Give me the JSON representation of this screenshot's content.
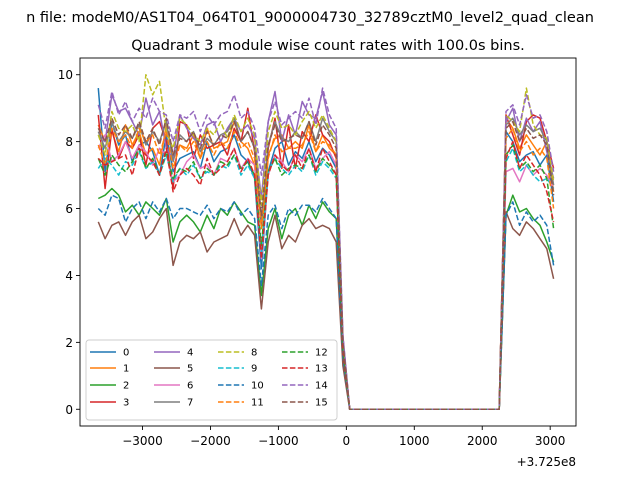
{
  "figure": {
    "suptitle": "n file: modeM0/AS1T04_064T01_9000004730_32789cztM0_level2_quad_clean",
    "title": "Quadrant 3 module wise count rates with 100.0s bins.",
    "offset_text": "+3.725e8"
  },
  "chart_data": {
    "type": "line",
    "title": "Quadrant 3 module wise count rates with 100.0s bins.",
    "xlabel": "",
    "ylabel": "",
    "x_offset": 372500000,
    "xlim": [
      -3920,
      3380
    ],
    "ylim": [
      -0.5,
      10.5
    ],
    "xticks": [
      -3000,
      -2000,
      -1000,
      0,
      1000,
      2000,
      3000
    ],
    "xtick_labels": [
      "−3000",
      "−2000",
      "−1000",
      "0",
      "1000",
      "2000",
      "3000"
    ],
    "yticks": [
      0,
      2,
      4,
      6,
      8,
      10
    ],
    "ytick_labels": [
      "0",
      "2",
      "4",
      "6",
      "8",
      "10"
    ],
    "grid": false,
    "legend": {
      "placement": "lower-left",
      "columns": 4
    },
    "x": [
      -3650,
      -3550,
      -3450,
      -3350,
      -3250,
      -3150,
      -3050,
      -2950,
      -2850,
      -2750,
      -2650,
      -2550,
      -2450,
      -2350,
      -2250,
      -2150,
      -2050,
      -1950,
      -1850,
      -1750,
      -1650,
      -1550,
      -1450,
      -1350,
      -1250,
      -1150,
      -1050,
      -950,
      -850,
      -750,
      -650,
      -550,
      -450,
      -350,
      -250,
      -150,
      -50,
      50,
      150,
      250,
      350,
      450,
      550,
      650,
      750,
      850,
      950,
      1050,
      1150,
      1250,
      1350,
      1450,
      1550,
      1650,
      1750,
      1850,
      1950,
      2050,
      2150,
      2250,
      2350,
      2450,
      2550,
      2650,
      2750,
      2850,
      2950,
      3050
    ],
    "series": [
      {
        "name": "0",
        "color": "#1f77b4",
        "dash": "solid",
        "values": [
          9.6,
          7.1,
          8.6,
          7.9,
          8.2,
          7.4,
          7.9,
          8.0,
          7.7,
          7.0,
          8.2,
          7.1,
          7.5,
          7.6,
          7.7,
          7.2,
          8.0,
          7.4,
          7.7,
          7.8,
          8.2,
          7.6,
          7.4,
          6.9,
          4.2,
          7.1,
          7.8,
          8.0,
          7.3,
          7.7,
          7.5,
          8.0,
          7.4,
          7.8,
          7.6,
          7.2,
          1.9,
          0,
          0,
          0,
          0,
          0,
          0,
          0,
          0,
          0,
          0,
          0,
          0,
          0,
          0,
          0,
          0,
          0,
          0,
          0,
          0,
          0,
          0,
          0,
          8.3,
          8.0,
          7.4,
          7.6,
          7.7,
          7.3,
          7.6,
          6.2
        ]
      },
      {
        "name": "1",
        "color": "#ff7f0e",
        "dash": "solid",
        "values": [
          8.5,
          8.0,
          8.3,
          7.7,
          8.5,
          7.9,
          8.3,
          7.6,
          7.8,
          7.3,
          8.5,
          7.6,
          7.9,
          7.8,
          8.2,
          7.5,
          8.4,
          7.8,
          7.9,
          8.0,
          8.6,
          8.0,
          7.8,
          7.3,
          4.6,
          7.6,
          8.1,
          8.2,
          7.8,
          8.0,
          7.8,
          8.5,
          7.7,
          8.2,
          7.8,
          7.6,
          2.0,
          0,
          0,
          0,
          0,
          0,
          0,
          0,
          0,
          0,
          0,
          0,
          0,
          0,
          0,
          0,
          0,
          0,
          0,
          0,
          0,
          0,
          0,
          0,
          8.7,
          8.4,
          7.8,
          8.2,
          7.9,
          7.6,
          8.0,
          6.5
        ]
      },
      {
        "name": "2",
        "color": "#2ca02c",
        "dash": "solid",
        "values": [
          6.3,
          6.4,
          6.6,
          6.4,
          5.9,
          6.1,
          5.8,
          6.2,
          6.0,
          5.8,
          6.3,
          5.0,
          5.6,
          5.8,
          5.6,
          5.3,
          5.8,
          5.4,
          6.0,
          5.8,
          6.2,
          5.9,
          5.6,
          5.5,
          3.4,
          5.4,
          6.0,
          5.1,
          5.8,
          6.0,
          5.5,
          6.1,
          5.7,
          6.2,
          5.9,
          5.7,
          1.5,
          0,
          0,
          0,
          0,
          0,
          0,
          0,
          0,
          0,
          0,
          0,
          0,
          0,
          0,
          0,
          0,
          0,
          0,
          0,
          0,
          0,
          0,
          0,
          5.8,
          6.4,
          5.9,
          6.0,
          5.7,
          5.5,
          5.0,
          4.4
        ]
      },
      {
        "name": "3",
        "color": "#d62728",
        "dash": "solid",
        "values": [
          8.8,
          6.6,
          8.4,
          7.5,
          8.0,
          7.8,
          8.2,
          7.3,
          8.4,
          8.6,
          8.0,
          6.6,
          8.6,
          8.5,
          7.5,
          8.2,
          7.8,
          7.9,
          8.0,
          7.6,
          8.4,
          8.0,
          9.0,
          7.7,
          5.5,
          7.8,
          8.7,
          7.2,
          8.5,
          7.2,
          8.3,
          8.0,
          8.8,
          8.2,
          8.0,
          7.5,
          2.1,
          0,
          0,
          0,
          0,
          0,
          0,
          0,
          0,
          0,
          0,
          0,
          0,
          0,
          0,
          0,
          0,
          0,
          0,
          0,
          0,
          0,
          0,
          0,
          8.8,
          8.2,
          7.6,
          8.6,
          8.8,
          8.7,
          8.0,
          7.2
        ]
      },
      {
        "name": "4",
        "color": "#9467bd",
        "dash": "solid",
        "values": [
          8.2,
          8.0,
          9.4,
          8.9,
          9.0,
          8.6,
          8.2,
          9.3,
          8.5,
          8.9,
          7.8,
          7.5,
          8.8,
          8.4,
          8.1,
          7.9,
          8.5,
          8.6,
          8.0,
          8.4,
          8.7,
          8.3,
          8.5,
          8.1,
          6.3,
          8.6,
          9.5,
          8.0,
          8.8,
          8.2,
          9.2,
          8.8,
          8.7,
          9.5,
          8.5,
          8.2,
          2.2,
          0,
          0,
          0,
          0,
          0,
          0,
          0,
          0,
          0,
          0,
          0,
          0,
          0,
          0,
          0,
          0,
          0,
          0,
          0,
          0,
          0,
          0,
          0,
          8.6,
          9.0,
          8.0,
          8.7,
          8.3,
          8.6,
          7.7,
          6.9
        ]
      },
      {
        "name": "5",
        "color": "#8c564b",
        "dash": "solid",
        "values": [
          5.6,
          5.1,
          5.5,
          5.6,
          5.2,
          5.6,
          5.8,
          5.1,
          5.3,
          5.7,
          6.0,
          4.3,
          5.0,
          5.2,
          5.1,
          5.3,
          4.7,
          5.0,
          5.1,
          5.2,
          5.7,
          5.2,
          5.5,
          5.2,
          3.0,
          5.0,
          5.8,
          4.8,
          5.2,
          5.0,
          5.5,
          5.7,
          5.4,
          5.5,
          5.4,
          5.0,
          1.3,
          0,
          0,
          0,
          0,
          0,
          0,
          0,
          0,
          0,
          0,
          0,
          0,
          0,
          0,
          0,
          0,
          0,
          0,
          0,
          0,
          0,
          0,
          0,
          5.9,
          5.4,
          5.2,
          5.6,
          5.4,
          5.1,
          4.8,
          3.9
        ]
      },
      {
        "name": "6",
        "color": "#e377c2",
        "dash": "solid",
        "values": [
          7.8,
          8.2,
          7.4,
          7.6,
          8.0,
          7.5,
          7.9,
          7.7,
          7.3,
          7.8,
          7.6,
          6.8,
          7.0,
          7.4,
          7.6,
          7.2,
          7.3,
          7.0,
          7.5,
          7.4,
          7.8,
          7.2,
          7.5,
          7.3,
          4.5,
          7.0,
          7.6,
          7.4,
          7.1,
          7.6,
          7.4,
          7.8,
          7.2,
          7.5,
          7.7,
          7.3,
          1.9,
          0,
          0,
          0,
          0,
          0,
          0,
          0,
          0,
          0,
          0,
          0,
          0,
          0,
          0,
          0,
          0,
          0,
          0,
          0,
          0,
          0,
          0,
          0,
          7.1,
          7.2,
          6.8,
          7.3,
          7.0,
          7.2,
          7.0,
          6.6
        ]
      },
      {
        "name": "7",
        "color": "#7f7f7f",
        "dash": "solid",
        "values": [
          8.3,
          7.8,
          8.6,
          8.0,
          8.3,
          8.1,
          8.5,
          7.9,
          8.3,
          8.0,
          8.6,
          7.4,
          8.2,
          8.0,
          8.3,
          7.7,
          8.1,
          7.9,
          8.2,
          8.3,
          8.7,
          8.0,
          8.3,
          7.8,
          5.6,
          7.9,
          8.6,
          8.1,
          8.0,
          8.3,
          8.1,
          8.6,
          8.0,
          8.7,
          8.3,
          8.0,
          2.0,
          0,
          0,
          0,
          0,
          0,
          0,
          0,
          0,
          0,
          0,
          0,
          0,
          0,
          0,
          0,
          0,
          0,
          0,
          0,
          0,
          0,
          0,
          0,
          8.5,
          8.7,
          8.2,
          8.5,
          8.3,
          8.4,
          8.0,
          6.7
        ]
      },
      {
        "name": "8",
        "color": "#bcbd22",
        "dash": "dashed",
        "values": [
          8.2,
          7.6,
          8.9,
          8.4,
          8.3,
          8.5,
          8.0,
          10.0,
          9.4,
          9.8,
          8.3,
          7.8,
          8.7,
          8.5,
          8.2,
          8.0,
          8.4,
          8.2,
          8.6,
          8.1,
          8.8,
          8.3,
          8.7,
          8.2,
          6.1,
          8.3,
          8.9,
          8.4,
          8.5,
          8.2,
          8.6,
          8.9,
          8.4,
          8.8,
          8.4,
          8.0,
          2.1,
          0,
          0,
          0,
          0,
          0,
          0,
          0,
          0,
          0,
          0,
          0,
          0,
          0,
          0,
          0,
          0,
          0,
          0,
          0,
          0,
          0,
          0,
          0,
          8.8,
          8.6,
          8.3,
          9.6,
          8.5,
          8.2,
          8.1,
          6.8
        ]
      },
      {
        "name": "9",
        "color": "#17becf",
        "dash": "dashed",
        "values": [
          7.2,
          7.5,
          7.3,
          7.0,
          7.4,
          7.3,
          7.7,
          7.2,
          7.4,
          7.0,
          7.6,
          6.8,
          7.2,
          7.0,
          7.3,
          6.9,
          7.1,
          7.0,
          7.3,
          7.2,
          7.6,
          7.0,
          7.3,
          6.9,
          4.7,
          7.1,
          7.5,
          7.2,
          7.0,
          7.3,
          7.1,
          7.6,
          7.0,
          7.4,
          7.2,
          6.9,
          1.9,
          0,
          0,
          0,
          0,
          0,
          0,
          0,
          0,
          0,
          0,
          0,
          0,
          0,
          0,
          0,
          0,
          0,
          0,
          0,
          0,
          0,
          0,
          0,
          7.4,
          7.8,
          7.1,
          7.3,
          7.0,
          6.8,
          6.9,
          6.6
        ]
      },
      {
        "name": "10",
        "color": "#1f77b4",
        "dash": "dashed",
        "values": [
          6.0,
          5.8,
          6.4,
          6.3,
          5.6,
          6.0,
          6.2,
          5.7,
          6.2,
          5.9,
          6.3,
          5.7,
          6.0,
          6.0,
          5.9,
          5.8,
          6.1,
          5.7,
          6.0,
          5.9,
          6.2,
          5.8,
          6.0,
          5.7,
          3.7,
          5.8,
          6.1,
          5.4,
          6.0,
          5.8,
          6.1,
          6.1,
          5.9,
          6.3,
          6.0,
          5.7,
          1.6,
          0,
          0,
          0,
          0,
          0,
          0,
          0,
          0,
          0,
          0,
          0,
          0,
          0,
          0,
          0,
          0,
          0,
          0,
          0,
          0,
          0,
          0,
          0,
          5.8,
          6.2,
          5.5,
          5.9,
          5.6,
          5.8,
          5.5,
          4.3
        ]
      },
      {
        "name": "11",
        "color": "#ff7f0e",
        "dash": "dashed",
        "values": [
          7.9,
          7.3,
          8.4,
          8.0,
          8.2,
          7.8,
          8.4,
          8.0,
          8.2,
          7.6,
          8.3,
          7.2,
          7.9,
          7.7,
          8.0,
          7.5,
          8.0,
          7.6,
          8.0,
          7.8,
          8.3,
          7.8,
          8.0,
          7.5,
          5.4,
          7.5,
          8.2,
          7.7,
          7.8,
          7.8,
          7.9,
          8.3,
          7.7,
          8.0,
          7.9,
          7.6,
          1.9,
          0,
          0,
          0,
          0,
          0,
          0,
          0,
          0,
          0,
          0,
          0,
          0,
          0,
          0,
          0,
          0,
          0,
          0,
          0,
          0,
          0,
          0,
          0,
          8.1,
          8.4,
          7.7,
          8.0,
          7.6,
          7.8,
          7.5,
          6.0
        ]
      },
      {
        "name": "12",
        "color": "#2ca02c",
        "dash": "dashed",
        "values": [
          7.5,
          7.0,
          7.6,
          7.3,
          7.1,
          7.4,
          7.8,
          7.2,
          7.5,
          7.0,
          7.7,
          6.9,
          7.2,
          7.1,
          7.4,
          6.9,
          7.2,
          7.0,
          7.4,
          7.3,
          7.6,
          7.2,
          7.4,
          7.0,
          4.9,
          7.1,
          7.5,
          7.0,
          7.2,
          7.3,
          7.2,
          7.6,
          7.1,
          7.5,
          7.3,
          7.0,
          1.8,
          0,
          0,
          0,
          0,
          0,
          0,
          0,
          0,
          0,
          0,
          0,
          0,
          0,
          0,
          0,
          0,
          0,
          0,
          0,
          0,
          0,
          0,
          0,
          7.6,
          7.9,
          7.2,
          7.4,
          7.1,
          7.3,
          6.9,
          5.4
        ]
      },
      {
        "name": "13",
        "color": "#d62728",
        "dash": "dashed",
        "values": [
          7.5,
          7.3,
          7.4,
          7.5,
          7.6,
          7.0,
          7.8,
          7.6,
          7.4,
          7.0,
          7.8,
          6.5,
          7.0,
          7.2,
          7.0,
          6.7,
          7.5,
          7.0,
          7.2,
          7.4,
          7.8,
          7.1,
          7.5,
          7.0,
          4.5,
          7.0,
          7.6,
          7.3,
          7.1,
          7.6,
          7.2,
          7.8,
          7.1,
          7.8,
          7.4,
          7.0,
          1.8,
          0,
          0,
          0,
          0,
          0,
          0,
          0,
          0,
          0,
          0,
          0,
          0,
          0,
          0,
          0,
          0,
          0,
          0,
          0,
          0,
          0,
          0,
          0,
          7.5,
          8.0,
          7.2,
          7.6,
          7.3,
          7.0,
          6.5,
          5.6
        ]
      },
      {
        "name": "14",
        "color": "#9467bd",
        "dash": "dashed",
        "values": [
          9.1,
          8.4,
          9.5,
          8.8,
          9.2,
          8.6,
          9.0,
          8.7,
          9.3,
          8.9,
          8.8,
          8.0,
          8.8,
          8.7,
          8.9,
          8.3,
          8.8,
          8.5,
          8.8,
          8.9,
          9.4,
          8.7,
          8.9,
          8.4,
          7.0,
          8.6,
          9.2,
          8.5,
          8.7,
          8.9,
          8.7,
          9.3,
          8.5,
          9.6,
          8.8,
          8.4,
          2.2,
          0,
          0,
          0,
          0,
          0,
          0,
          0,
          0,
          0,
          0,
          0,
          0,
          0,
          0,
          0,
          0,
          0,
          0,
          0,
          0,
          0,
          0,
          0,
          8.9,
          9.1,
          8.5,
          9.4,
          8.7,
          8.8,
          8.3,
          7.1
        ]
      },
      {
        "name": "15",
        "color": "#8c564b",
        "dash": "dashed",
        "values": [
          8.4,
          8.0,
          8.7,
          8.2,
          8.5,
          8.1,
          8.6,
          8.0,
          8.4,
          7.9,
          8.7,
          7.6,
          8.1,
          8.0,
          8.3,
          7.8,
          8.3,
          7.9,
          8.2,
          8.1,
          8.6,
          8.0,
          8.3,
          7.8,
          5.8,
          7.9,
          8.5,
          8.0,
          8.1,
          8.2,
          8.1,
          8.6,
          7.9,
          8.5,
          8.2,
          7.8,
          2.0,
          0,
          0,
          0,
          0,
          0,
          0,
          0,
          0,
          0,
          0,
          0,
          0,
          0,
          0,
          0,
          0,
          0,
          0,
          0,
          0,
          0,
          0,
          0,
          8.4,
          8.6,
          8.0,
          8.4,
          8.1,
          8.2,
          7.9,
          6.4
        ]
      }
    ]
  }
}
